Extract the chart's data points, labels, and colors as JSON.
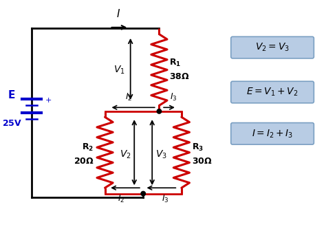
{
  "bg_color": "#ffffff",
  "wire_color": "#000000",
  "resistor_color": "#cc0000",
  "battery_color": "#0000cc",
  "eq_box_color": "#b8cce4",
  "eq_box_edge": "#7a9fc2",
  "equations": [
    "$V_2 = V_3$",
    "$E = V_1 + V_2$",
    "$I = I_2 + I_3$"
  ],
  "XL": 0.8,
  "XR1": 4.8,
  "XR2": 3.1,
  "XR3": 5.5,
  "YT": 6.2,
  "YJ": 3.6,
  "YB": 0.9,
  "lw": 2.0,
  "rlw": 2.2
}
